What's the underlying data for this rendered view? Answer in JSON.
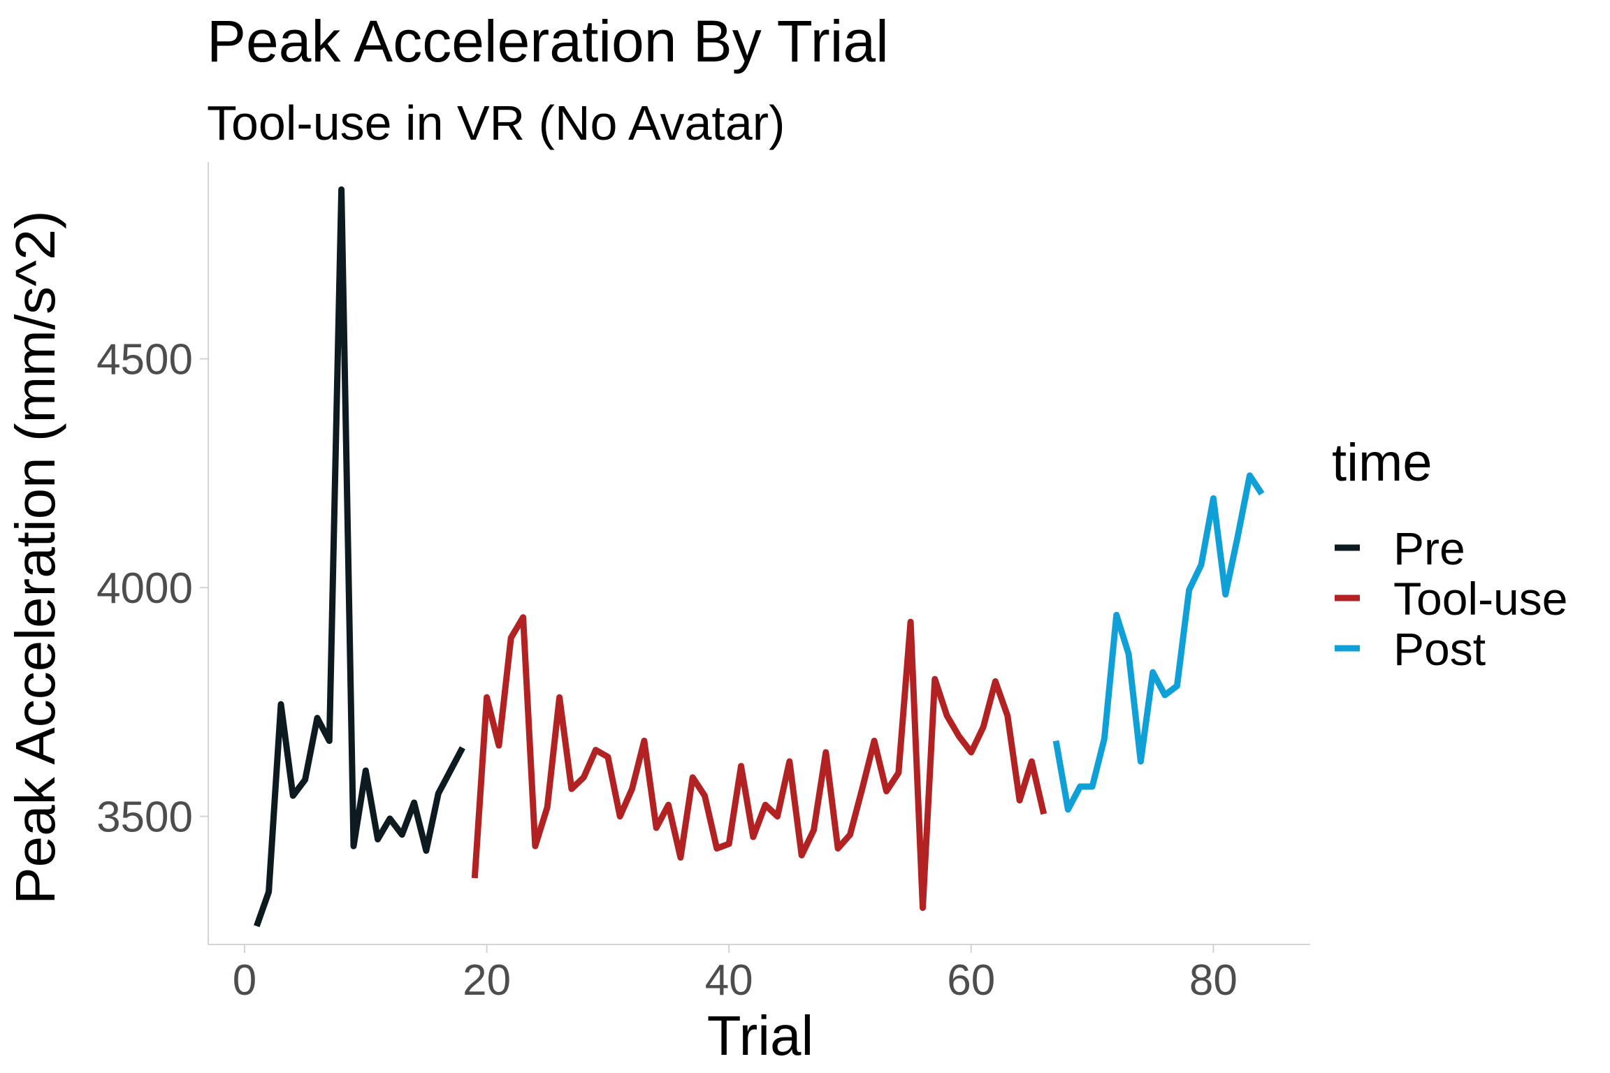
{
  "chart_data": {
    "type": "line",
    "title": "Peak Acceleration By Trial",
    "subtitle": "Tool-use in VR (No Avatar)",
    "xlabel": "Trial",
    "ylabel": "Peak Acceleration (mm/s^2)",
    "xlim": [
      -3,
      88
    ],
    "ylim": [
      3220,
      4930
    ],
    "x_ticks": [
      0,
      20,
      40,
      60,
      80
    ],
    "y_ticks": [
      3500,
      4000,
      4500
    ],
    "grid": false,
    "legend": {
      "title": "time",
      "placement": "right"
    },
    "series": [
      {
        "name": "Pre",
        "color": "#0d1a1f",
        "x": [
          1,
          2,
          3,
          4,
          5,
          6,
          7,
          8,
          9,
          10,
          11,
          12,
          13,
          14,
          15,
          16,
          17,
          18
        ],
        "y": [
          3260,
          3335,
          3745,
          3545,
          3580,
          3715,
          3665,
          4870,
          3435,
          3600,
          3450,
          3495,
          3460,
          3530,
          3425,
          3550,
          3600,
          3650
        ]
      },
      {
        "name": "Tool-use",
        "color": "#b22222",
        "x": [
          19,
          20,
          21,
          22,
          23,
          24,
          25,
          26,
          27,
          28,
          29,
          30,
          31,
          32,
          33,
          34,
          35,
          36,
          37,
          38,
          39,
          40,
          41,
          42,
          43,
          44,
          45,
          46,
          47,
          48,
          49,
          50,
          51,
          52,
          53,
          54,
          55,
          56,
          57,
          58,
          59,
          60,
          61,
          62,
          63,
          64,
          65,
          66
        ],
        "y": [
          3365,
          3760,
          3655,
          3890,
          3935,
          3435,
          3520,
          3760,
          3560,
          3585,
          3645,
          3630,
          3500,
          3560,
          3665,
          3475,
          3525,
          3410,
          3585,
          3545,
          3430,
          3440,
          3610,
          3455,
          3525,
          3500,
          3620,
          3415,
          3470,
          3640,
          3430,
          3460,
          3560,
          3665,
          3555,
          3595,
          3925,
          3300,
          3800,
          3720,
          3675,
          3640,
          3695,
          3795,
          3720,
          3535,
          3620,
          3505
        ]
      },
      {
        "name": "Post",
        "color": "#0fa0d8",
        "x": [
          67,
          68,
          69,
          70,
          71,
          72,
          73,
          74,
          75,
          76,
          77,
          78,
          79,
          80,
          81,
          82,
          83,
          84
        ],
        "y": [
          3665,
          3515,
          3565,
          3565,
          3670,
          3940,
          3855,
          3620,
          3815,
          3765,
          3785,
          3995,
          4050,
          4195,
          3985,
          4110,
          4245,
          4205
        ]
      }
    ]
  }
}
